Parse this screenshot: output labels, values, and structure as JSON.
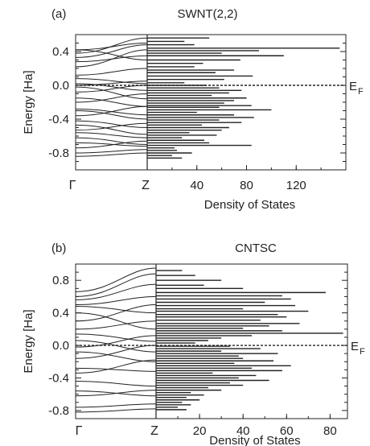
{
  "chart_data": [
    {
      "type": "band-structure-dos",
      "panel_label": "(a)",
      "title": "SWNT(2,2)",
      "ylabel": "Energy  [Ha]",
      "xlabel": "Density of States",
      "ylim": [
        -1.0,
        0.6
      ],
      "yticks": [
        "0.4",
        "0.0",
        "-0.4",
        "-0.8"
      ],
      "band_xticks": [
        "Γ",
        "Z"
      ],
      "dos_xlim": [
        0,
        160
      ],
      "dos_xticks": [
        "40",
        "80",
        "120"
      ],
      "fermi_label": "E",
      "fermi_sub": "F",
      "fermi_energy": 0.0,
      "bands": [
        [
          0.42,
          0.5
        ],
        [
          0.38,
          0.56
        ],
        [
          0.33,
          0.48
        ],
        [
          0.42,
          0.3
        ],
        [
          0.28,
          0.35
        ],
        [
          0.22,
          0.42
        ],
        [
          0.12,
          0.2
        ],
        [
          0.08,
          0.02
        ],
        [
          0.02,
          -0.06
        ],
        [
          0.0,
          0.05
        ],
        [
          -0.02,
          -0.16
        ],
        [
          -0.08,
          0.0
        ],
        [
          -0.15,
          -0.25
        ],
        [
          -0.2,
          -0.1
        ],
        [
          -0.28,
          -0.35
        ],
        [
          -0.3,
          -0.4
        ],
        [
          -0.36,
          -0.25
        ],
        [
          -0.42,
          -0.5
        ],
        [
          -0.47,
          -0.58
        ],
        [
          -0.53,
          -0.45
        ],
        [
          -0.56,
          -0.62
        ],
        [
          -0.62,
          -0.7
        ],
        [
          -0.68,
          -0.72
        ],
        [
          -0.74,
          -0.66
        ],
        [
          -0.8,
          -0.76
        ],
        [
          -0.84,
          -0.8
        ]
      ],
      "dos": [
        [
          0.56,
          50
        ],
        [
          0.52,
          30
        ],
        [
          0.48,
          38
        ],
        [
          0.44,
          155
        ],
        [
          0.41,
          90
        ],
        [
          0.38,
          60
        ],
        [
          0.35,
          110
        ],
        [
          0.3,
          75
        ],
        [
          0.26,
          45
        ],
        [
          0.22,
          38
        ],
        [
          0.18,
          70
        ],
        [
          0.15,
          55
        ],
        [
          0.11,
          85
        ],
        [
          0.07,
          62
        ],
        [
          0.03,
          30
        ],
        [
          0.0,
          48
        ],
        [
          -0.03,
          58
        ],
        [
          -0.06,
          76
        ],
        [
          -0.09,
          66
        ],
        [
          -0.12,
          52
        ],
        [
          -0.15,
          80
        ],
        [
          -0.18,
          70
        ],
        [
          -0.21,
          62
        ],
        [
          -0.24,
          84
        ],
        [
          -0.26,
          58
        ],
        [
          -0.29,
          100
        ],
        [
          -0.32,
          40
        ],
        [
          -0.35,
          70
        ],
        [
          -0.38,
          86
        ],
        [
          -0.41,
          58
        ],
        [
          -0.44,
          76
        ],
        [
          -0.47,
          44
        ],
        [
          -0.5,
          66
        ],
        [
          -0.53,
          60
        ],
        [
          -0.56,
          34
        ],
        [
          -0.59,
          56
        ],
        [
          -0.62,
          28
        ],
        [
          -0.65,
          46
        ],
        [
          -0.68,
          50
        ],
        [
          -0.71,
          84
        ],
        [
          -0.74,
          22
        ],
        [
          -0.77,
          24
        ],
        [
          -0.8,
          36
        ],
        [
          -0.83,
          20
        ],
        [
          -0.86,
          28
        ]
      ]
    },
    {
      "type": "band-structure-dos",
      "panel_label": "(b)",
      "title": "CNTSC",
      "ylabel": "Energy  [Ha]",
      "xlabel": "Density of States",
      "ylim": [
        -0.9,
        1.0
      ],
      "yticks": [
        "0.8",
        "0.4",
        "0.0",
        "-0.4",
        "-0.8"
      ],
      "band_xticks": [
        "Γ",
        "Z"
      ],
      "dos_xlim": [
        0,
        88
      ],
      "dos_xticks": [
        "20",
        "40",
        "60",
        "80"
      ],
      "fermi_label": "E",
      "fermi_sub": "F",
      "fermi_energy": 0.0,
      "bands": [
        [
          0.66,
          0.95
        ],
        [
          0.6,
          0.88
        ],
        [
          0.56,
          0.75
        ],
        [
          0.5,
          0.6
        ],
        [
          0.48,
          0.4
        ],
        [
          0.4,
          0.2
        ],
        [
          0.3,
          0.5
        ],
        [
          0.2,
          0.3
        ],
        [
          0.14,
          0.05
        ],
        [
          0.06,
          -0.08
        ],
        [
          -0.02,
          0.12
        ],
        [
          -0.08,
          -0.2
        ],
        [
          -0.16,
          0.0
        ],
        [
          -0.28,
          -0.32
        ],
        [
          -0.34,
          -0.18
        ],
        [
          -0.44,
          -0.5
        ],
        [
          -0.56,
          -0.62
        ],
        [
          -0.62,
          -0.55
        ],
        [
          -0.76,
          -0.72
        ],
        [
          -0.82,
          -0.78
        ]
      ],
      "dos": [
        [
          0.92,
          12
        ],
        [
          0.86,
          18
        ],
        [
          0.8,
          30
        ],
        [
          0.74,
          22
        ],
        [
          0.7,
          40
        ],
        [
          0.65,
          78
        ],
        [
          0.61,
          58
        ],
        [
          0.57,
          62
        ],
        [
          0.53,
          50
        ],
        [
          0.49,
          64
        ],
        [
          0.45,
          40
        ],
        [
          0.42,
          70
        ],
        [
          0.38,
          56
        ],
        [
          0.35,
          60
        ],
        [
          0.31,
          48
        ],
        [
          0.27,
          66
        ],
        [
          0.24,
          52
        ],
        [
          0.21,
          40
        ],
        [
          0.18,
          58
        ],
        [
          0.15,
          86
        ],
        [
          0.12,
          44
        ],
        [
          0.09,
          30
        ],
        [
          0.06,
          24
        ],
        [
          0.03,
          18
        ],
        [
          -0.01,
          34
        ],
        [
          -0.04,
          48
        ],
        [
          -0.07,
          30
        ],
        [
          -0.1,
          56
        ],
        [
          -0.13,
          38
        ],
        [
          -0.16,
          40
        ],
        [
          -0.19,
          54
        ],
        [
          -0.22,
          36
        ],
        [
          -0.25,
          62
        ],
        [
          -0.28,
          44
        ],
        [
          -0.31,
          58
        ],
        [
          -0.34,
          26
        ],
        [
          -0.37,
          46
        ],
        [
          -0.4,
          38
        ],
        [
          -0.43,
          52
        ],
        [
          -0.46,
          34
        ],
        [
          -0.49,
          40
        ],
        [
          -0.52,
          24
        ],
        [
          -0.55,
          30
        ],
        [
          -0.58,
          16
        ],
        [
          -0.61,
          22
        ],
        [
          -0.64,
          14
        ],
        [
          -0.67,
          20
        ],
        [
          -0.7,
          12
        ],
        [
          -0.73,
          16
        ],
        [
          -0.76,
          10
        ],
        [
          -0.79,
          14
        ]
      ]
    }
  ]
}
